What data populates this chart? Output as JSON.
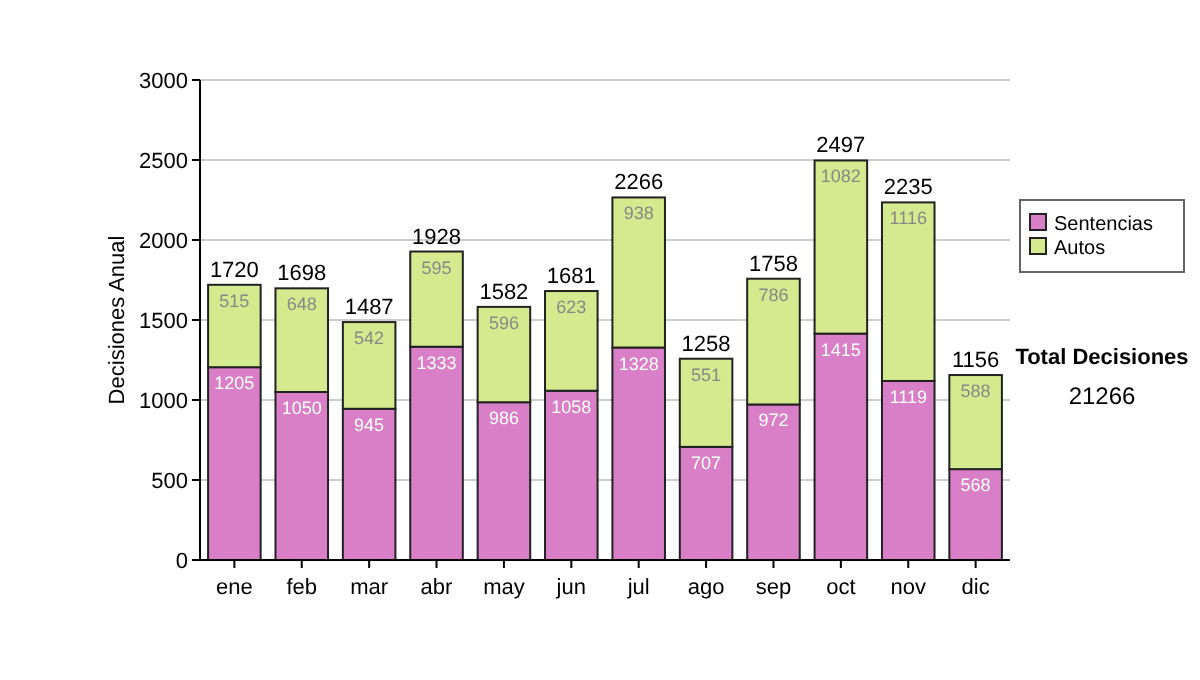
{
  "chart_data": {
    "type": "bar",
    "stacked": true,
    "ylabel": "Decisiones Anual",
    "categories": [
      "ene",
      "feb",
      "mar",
      "abr",
      "may",
      "jun",
      "jul",
      "ago",
      "sep",
      "oct",
      "nov",
      "dic"
    ],
    "series": [
      {
        "name": "Sentencias",
        "color": "#d97fc8",
        "values": [
          1205,
          1050,
          945,
          1333,
          986,
          1058,
          1328,
          707,
          972,
          1415,
          1119,
          568
        ]
      },
      {
        "name": "Autos",
        "color": "#d5ea8e",
        "values": [
          515,
          648,
          542,
          595,
          596,
          623,
          938,
          551,
          786,
          1082,
          1116,
          588
        ]
      }
    ],
    "totals": [
      "1720",
      "1698",
      "1487",
      "1928",
      "1582",
      "1681",
      "2266",
      "1258",
      "1758",
      "2497",
      "2235",
      "1156"
    ],
    "data_labels": true,
    "ylim": [
      0,
      3000
    ],
    "yticks": [
      0,
      500,
      1000,
      1500,
      2000,
      2500,
      3000
    ],
    "grid": "y",
    "legend": "right",
    "annotations": [
      "Total Decisiones",
      "21266"
    ]
  }
}
